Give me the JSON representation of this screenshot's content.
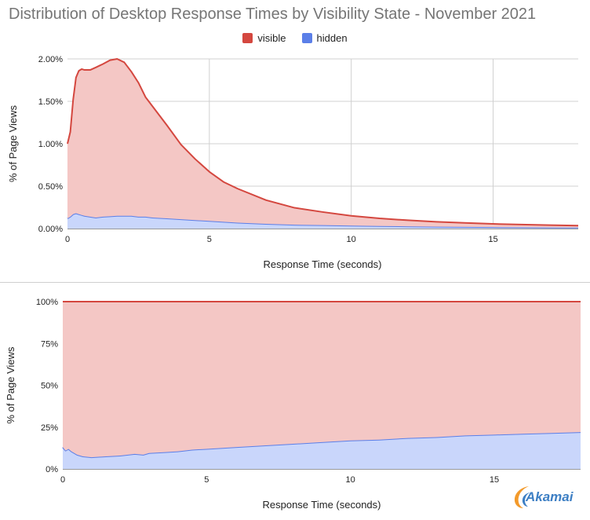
{
  "title": "Distribution of Desktop Response Times by Visibility State - November 2021",
  "legend": [
    {
      "label": "visible",
      "color": "#d4473f"
    },
    {
      "label": "hidden",
      "color": "#5b7fe8"
    }
  ],
  "logo": {
    "text": "Akamai",
    "icon": "akamai-logo-icon"
  },
  "chart_data": [
    {
      "type": "area",
      "stacked": true,
      "xlabel": "Response Time (seconds)",
      "ylabel": "% of Page Views",
      "xlim": [
        0,
        18
      ],
      "ylim": [
        0,
        2
      ],
      "xticks": [
        0,
        5,
        10,
        15
      ],
      "xtick_labels": [
        "0",
        "5",
        "10",
        "15"
      ],
      "yticks": [
        0,
        0.5,
        1,
        1.5,
        2
      ],
      "ytick_labels": [
        "0.00%",
        "0.50%",
        "1.00%",
        "1.50%",
        "2.00%"
      ],
      "grid": true,
      "x": [
        0,
        0.1,
        0.2,
        0.3,
        0.4,
        0.5,
        0.6,
        0.8,
        1.0,
        1.25,
        1.5,
        1.75,
        2.0,
        2.25,
        2.5,
        2.75,
        3.0,
        3.5,
        4.0,
        4.5,
        5.0,
        5.5,
        6.0,
        7.0,
        8.0,
        9.0,
        10.0,
        11.0,
        12.0,
        13.0,
        14.0,
        15.0,
        16.0,
        17.0,
        18.0
      ],
      "series": [
        {
          "name": "hidden",
          "color": "#5b7fe8",
          "values": [
            0.12,
            0.14,
            0.17,
            0.18,
            0.17,
            0.16,
            0.15,
            0.14,
            0.13,
            0.14,
            0.145,
            0.15,
            0.15,
            0.15,
            0.14,
            0.14,
            0.13,
            0.12,
            0.11,
            0.1,
            0.09,
            0.08,
            0.07,
            0.055,
            0.045,
            0.04,
            0.035,
            0.03,
            0.026,
            0.022,
            0.02,
            0.017,
            0.015,
            0.013,
            0.012
          ]
        },
        {
          "name": "visible",
          "color": "#d4473f",
          "values": [
            0.88,
            1.0,
            1.35,
            1.6,
            1.69,
            1.72,
            1.72,
            1.73,
            1.77,
            1.8,
            1.84,
            1.85,
            1.81,
            1.7,
            1.58,
            1.41,
            1.31,
            1.1,
            0.88,
            0.72,
            0.58,
            0.47,
            0.4,
            0.28,
            0.2,
            0.155,
            0.115,
            0.09,
            0.072,
            0.058,
            0.047,
            0.038,
            0.032,
            0.027,
            0.023
          ]
        }
      ]
    },
    {
      "type": "area",
      "stacked": true,
      "normalized": true,
      "xlabel": "Response Time (seconds)",
      "ylabel": "% of Page Views",
      "xlim": [
        0,
        18
      ],
      "ylim": [
        0,
        100
      ],
      "xticks": [
        0,
        5,
        10,
        15
      ],
      "xtick_labels": [
        "0",
        "5",
        "10",
        "15"
      ],
      "yticks": [
        0,
        25,
        50,
        75,
        100
      ],
      "ytick_labels": [
        "0%",
        "25%",
        "50%",
        "75%",
        "100%"
      ],
      "grid": true,
      "x": [
        0,
        0.1,
        0.2,
        0.3,
        0.5,
        0.7,
        1.0,
        1.5,
        2.0,
        2.5,
        2.8,
        3.0,
        3.5,
        4.0,
        4.5,
        5.0,
        6.0,
        7.0,
        8.0,
        9.0,
        10.0,
        11.0,
        12.0,
        13.0,
        14.0,
        15.0,
        16.0,
        17.0,
        18.0
      ],
      "series": [
        {
          "name": "hidden",
          "color": "#5b7fe8",
          "values": [
            13,
            11,
            12,
            10.5,
            8.5,
            7.5,
            7,
            7.5,
            8,
            9,
            8.5,
            9.5,
            10,
            10.5,
            11.5,
            12,
            13,
            14,
            15,
            16,
            17,
            17.5,
            18.5,
            19,
            20,
            20.5,
            21,
            21.5,
            22
          ]
        },
        {
          "name": "visible",
          "color": "#d4473f",
          "values": [
            87,
            89,
            88,
            89.5,
            91.5,
            92.5,
            93,
            92.5,
            92,
            91,
            91.5,
            90.5,
            90,
            89.5,
            88.5,
            88,
            87,
            86,
            85,
            84,
            83,
            82.5,
            81.5,
            81,
            80,
            79.5,
            79,
            78.5,
            78
          ]
        }
      ]
    }
  ]
}
